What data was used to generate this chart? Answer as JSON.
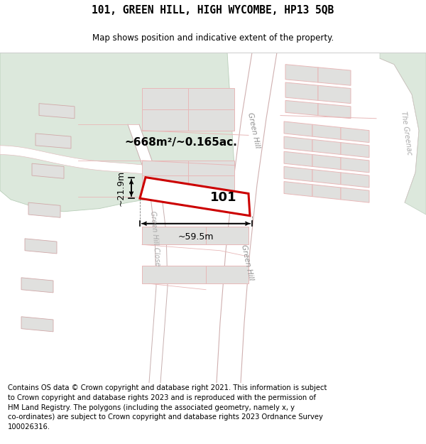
{
  "title_line1": "101, GREEN HILL, HIGH WYCOMBE, HP13 5QB",
  "title_line2": "Map shows position and indicative extent of the property.",
  "footer_line1": "Contains OS data © Crown copyright and database right 2021. This information is subject",
  "footer_line2": "to Crown copyright and database rights 2023 and is reproduced with the permission of",
  "footer_line3": "HM Land Registry. The polygons (including the associated geometry, namely x, y",
  "footer_line4": "co-ordinates) are subject to Crown copyright and database rights 2023 Ordnance Survey",
  "footer_line5": "100026316.",
  "map_bg": "#f7f7f5",
  "green_area_color": "#dce8dc",
  "road_fill": "#f0f0ee",
  "boundary_color": "#e8b8b8",
  "highlight_color": "#cc0000",
  "building_fill": "#e0e0de",
  "building_edge": "#d0a8a8",
  "dim_label_59": "~59.5m",
  "dim_label_21": "~21.9m",
  "area_label": "~668m²/~0.165ac.",
  "plot_label": "101",
  "street_gh1": "Green Hill",
  "street_gh2": "Green Hill",
  "street_ghc": "Green Hill Close",
  "street_tg": "The Greenac",
  "title_fontsize": 10.5,
  "footer_fontsize": 7.2
}
